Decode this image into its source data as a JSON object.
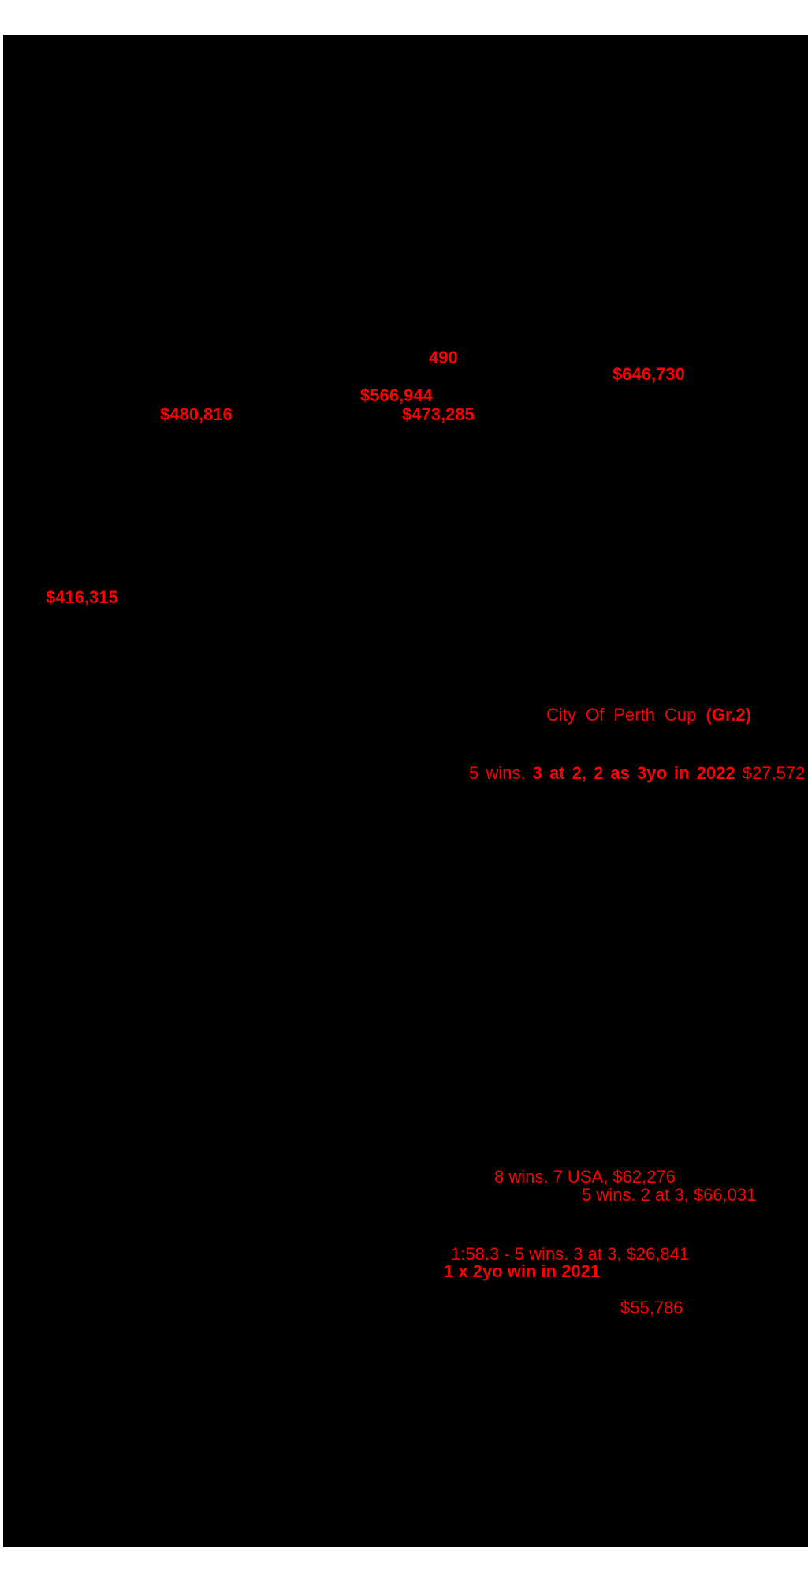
{
  "page": {
    "background_color": "#ffffff",
    "redaction_color": "#000000",
    "annotation_color": "#ff0000"
  },
  "annotations": {
    "foal_count": {
      "text": "490"
    },
    "earnings_1": {
      "text": "$646,730"
    },
    "earnings_2": {
      "text": "$566,944"
    },
    "earnings_3": {
      "text": "$480,816"
    },
    "earnings_4": {
      "text": "$473,285"
    },
    "earnings_5": {
      "text": "$416,315"
    },
    "race_name": {
      "normal": "City Of Perth Cup ",
      "bold": "(Gr.2)"
    },
    "wins_2022": {
      "prefix": "5 wins, ",
      "bold": "3 at 2, 2 as 3yo in 2022",
      "suffix": " $27,572"
    },
    "wins_usa": {
      "text": "8 wins. 7 USA, $62,276"
    },
    "wins_66031": {
      "text": "5 wins. 2 at 3, $66,031"
    },
    "wins_26841": {
      "text": "1:58.3 - 5 wins. 3 at 3, $26,841"
    },
    "two_yo_win_2021": {
      "text": "1 x 2yo win in 2021"
    },
    "earnings_6": {
      "text": "$55,786"
    }
  }
}
